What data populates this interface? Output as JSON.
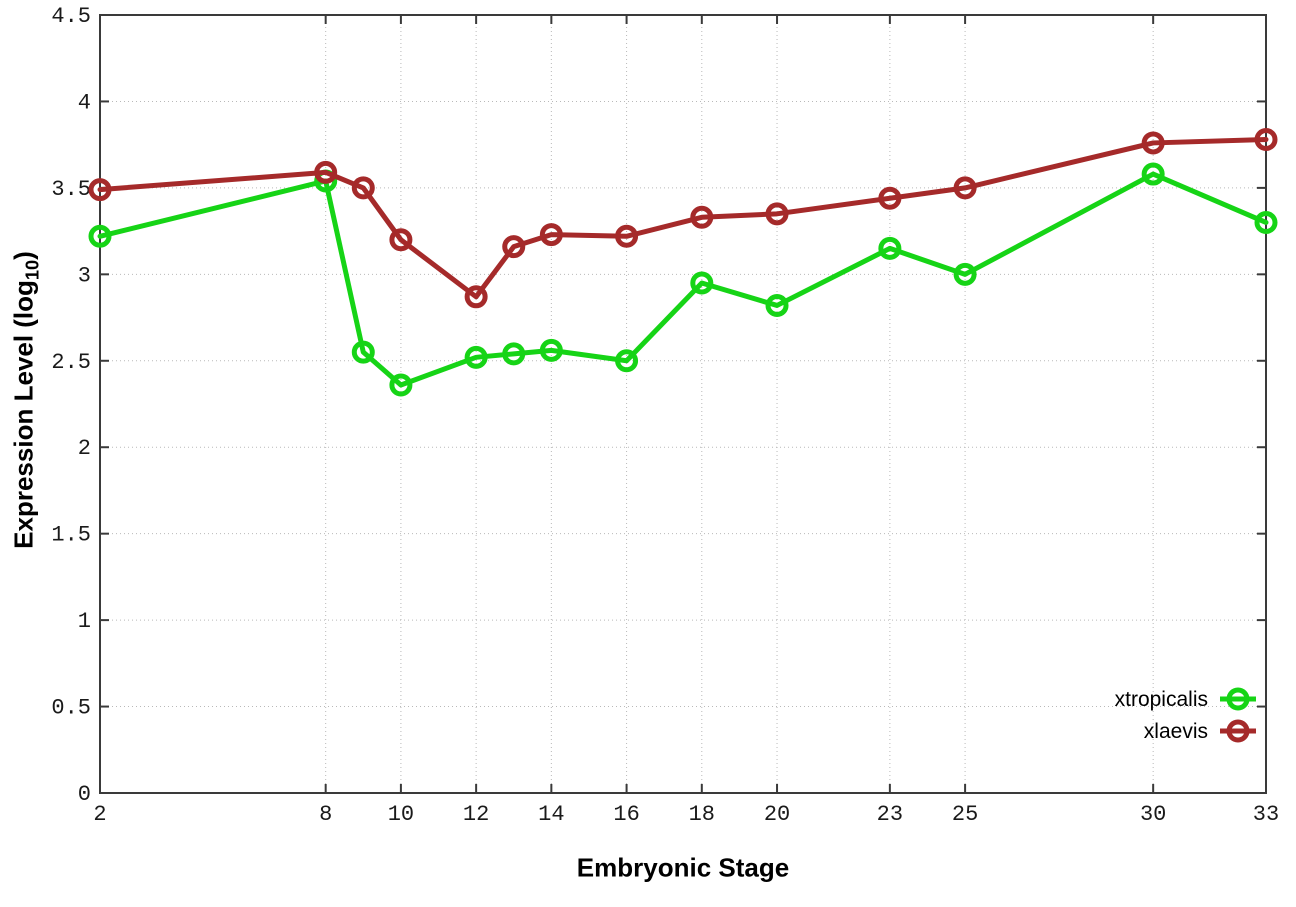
{
  "chart_data": {
    "type": "line",
    "title": "",
    "xlabel": "Embryonic Stage",
    "ylabel": "Expression Level (log10)",
    "ylabel_parts": {
      "prefix": "Expression Level (log",
      "sub": "10",
      "suffix": ")"
    },
    "xlim": [
      2,
      33
    ],
    "ylim": [
      0,
      4.5
    ],
    "grid": true,
    "grid_style": "dotted",
    "legend_position": "bottom-right",
    "x": [
      2,
      8,
      9,
      10,
      12,
      13,
      14,
      16,
      18,
      20,
      23,
      25,
      30,
      33
    ],
    "x_tick_values": [
      2,
      8,
      10,
      12,
      14,
      16,
      18,
      20,
      23,
      25,
      30,
      33
    ],
    "x_tick_labels": [
      "2",
      "8",
      "10",
      "12",
      "14",
      "16",
      "18",
      "20",
      "23",
      "25",
      "30",
      "33"
    ],
    "y_tick_values": [
      0,
      0.5,
      1,
      1.5,
      2,
      2.5,
      3,
      3.5,
      4,
      4.5
    ],
    "y_tick_labels": [
      "0",
      "0.5",
      "1",
      "1.5",
      "2",
      "2.5",
      "3",
      "3.5",
      "4",
      "4.5"
    ],
    "series": [
      {
        "name": "xtropicalis",
        "color": "#16d416",
        "marker": "open-circle",
        "values": [
          3.22,
          3.54,
          2.55,
          2.36,
          2.52,
          2.54,
          2.56,
          2.5,
          2.95,
          2.82,
          3.15,
          3.0,
          3.58,
          3.3
        ]
      },
      {
        "name": "xlaevis",
        "color": "#a52a2a",
        "marker": "open-circle",
        "values": [
          3.49,
          3.59,
          3.5,
          3.2,
          2.87,
          3.16,
          3.23,
          3.22,
          3.33,
          3.35,
          3.44,
          3.5,
          3.76,
          3.78
        ]
      }
    ],
    "colors": {
      "background": "#ffffff",
      "axis_border": "#3a3a3a",
      "grid": "#b9b9b9",
      "tick_label": "#1a1a1a"
    }
  }
}
